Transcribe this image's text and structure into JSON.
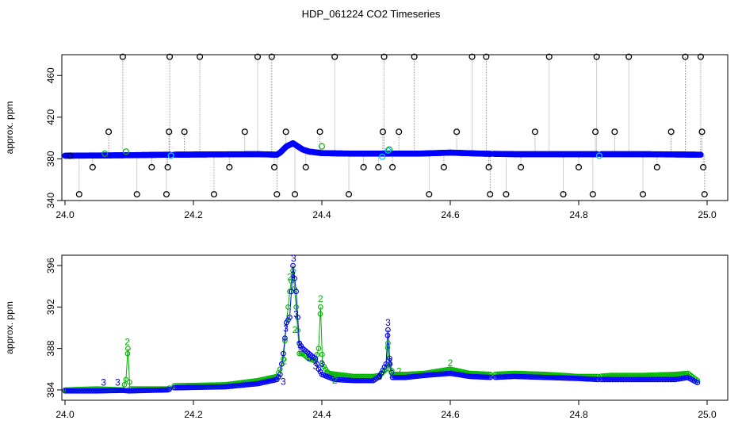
{
  "chart_data": {
    "type": "scatter",
    "title": "HDP_061224  CO2 Timeseries",
    "colors": {
      "black": "#000000",
      "blue": "#0000ff",
      "cyan": "#00c8ff",
      "green": "#00b400",
      "navy": "#0000cc",
      "gray": "#888888"
    },
    "panels": [
      {
        "ylabel": "approx. ppm",
        "xlim": [
          24.0,
          25.0
        ],
        "ylim": [
          340,
          480
        ],
        "xticks": [
          "24.0",
          "24.2",
          "24.4",
          "24.6",
          "24.8",
          "25.0"
        ],
        "yticks": [
          "340",
          "380",
          "420",
          "460"
        ],
        "baseline": [
          [
            24.0,
            383
          ],
          [
            24.1,
            383.5
          ],
          [
            24.16,
            384
          ],
          [
            24.3,
            384.5
          ],
          [
            24.33,
            384
          ],
          [
            24.335,
            386
          ],
          [
            24.34,
            389
          ],
          [
            24.345,
            392
          ],
          [
            24.355,
            395
          ],
          [
            24.36,
            393
          ],
          [
            24.37,
            389
          ],
          [
            24.38,
            387
          ],
          [
            24.4,
            385.5
          ],
          [
            24.45,
            385
          ],
          [
            24.5,
            385
          ],
          [
            24.55,
            385
          ],
          [
            24.6,
            386
          ],
          [
            24.65,
            385
          ],
          [
            24.7,
            384.5
          ],
          [
            24.8,
            384.5
          ],
          [
            24.9,
            384.5
          ],
          [
            24.99,
            384
          ]
        ],
        "gaps": [
          [
            24.165,
            24.17
          ],
          [
            24.664,
            24.668
          ],
          [
            24.83,
            24.835
          ]
        ],
        "outliers": [
          [
            24.008,
            383
          ],
          [
            24.022,
            346
          ],
          [
            24.043,
            372
          ],
          [
            24.068,
            406
          ],
          [
            24.09,
            478
          ],
          [
            24.112,
            346
          ],
          [
            24.135,
            372
          ],
          [
            24.158,
            346
          ],
          [
            24.16,
            372
          ],
          [
            24.162,
            406
          ],
          [
            24.163,
            478
          ],
          [
            24.186,
            406
          ],
          [
            24.21,
            478
          ],
          [
            24.232,
            346
          ],
          [
            24.256,
            372
          ],
          [
            24.28,
            406
          ],
          [
            24.3,
            478
          ],
          [
            24.322,
            478
          ],
          [
            24.326,
            372
          ],
          [
            24.33,
            346
          ],
          [
            24.344,
            406
          ],
          [
            24.358,
            346
          ],
          [
            24.375,
            372
          ],
          [
            24.397,
            406
          ],
          [
            24.42,
            478
          ],
          [
            24.442,
            346
          ],
          [
            24.465,
            372
          ],
          [
            24.488,
            372
          ],
          [
            24.495,
            406
          ],
          [
            24.497,
            478
          ],
          [
            24.51,
            372
          ],
          [
            24.52,
            406
          ],
          [
            24.544,
            478
          ],
          [
            24.567,
            346
          ],
          [
            24.59,
            372
          ],
          [
            24.61,
            406
          ],
          [
            24.634,
            478
          ],
          [
            24.656,
            478
          ],
          [
            24.66,
            372
          ],
          [
            24.662,
            346
          ],
          [
            24.687,
            346
          ],
          [
            24.71,
            372
          ],
          [
            24.732,
            406
          ],
          [
            24.754,
            478
          ],
          [
            24.776,
            346
          ],
          [
            24.8,
            372
          ],
          [
            24.822,
            346
          ],
          [
            24.826,
            406
          ],
          [
            24.828,
            478
          ],
          [
            24.856,
            406
          ],
          [
            24.878,
            478
          ],
          [
            24.9,
            346
          ],
          [
            24.922,
            372
          ],
          [
            24.944,
            406
          ],
          [
            24.966,
            478
          ],
          [
            24.99,
            478
          ],
          [
            24.992,
            406
          ],
          [
            24.994,
            372
          ],
          [
            24.996,
            346
          ]
        ],
        "cyan_points": [
          [
            24.165,
            383
          ],
          [
            24.494,
            382
          ],
          [
            24.503,
            388
          ],
          [
            24.832,
            383
          ]
        ],
        "green_points": [
          [
            24.062,
            385
          ],
          [
            24.095,
            387
          ],
          [
            24.4,
            392
          ],
          [
            24.505,
            389
          ]
        ]
      },
      {
        "ylabel": "approx. ppm",
        "xlim": [
          24.0,
          25.0
        ],
        "ylim": [
          383,
          397
        ],
        "xticks": [
          "24.0",
          "24.2",
          "24.4",
          "24.6",
          "24.8",
          "25.0"
        ],
        "yticks": [
          "384",
          "388",
          "392",
          "396"
        ],
        "series_blue": [
          [
            24.0,
            383.9
          ],
          [
            24.05,
            383.9
          ],
          [
            24.09,
            383.95
          ],
          [
            24.1,
            383.9
          ],
          [
            24.16,
            384.0
          ],
          [
            24.17,
            384.2
          ],
          [
            24.25,
            384.3
          ],
          [
            24.3,
            384.6
          ],
          [
            24.33,
            385.0
          ],
          [
            24.335,
            385.5
          ],
          [
            24.34,
            387.5
          ],
          [
            24.345,
            390.5
          ],
          [
            24.35,
            391.0
          ],
          [
            24.355,
            396.0
          ],
          [
            24.36,
            393.5
          ],
          [
            24.365,
            388.5
          ],
          [
            24.37,
            388.0
          ],
          [
            24.38,
            387.5
          ],
          [
            24.39,
            387.0
          ],
          [
            24.395,
            386.0
          ],
          [
            24.4,
            385.5
          ],
          [
            24.42,
            385.0
          ],
          [
            24.45,
            384.9
          ],
          [
            24.48,
            384.9
          ],
          [
            24.49,
            385.3
          ],
          [
            24.5,
            386.5
          ],
          [
            24.503,
            389.8
          ],
          [
            24.506,
            386.5
          ],
          [
            24.51,
            385.2
          ],
          [
            24.53,
            385.2
          ],
          [
            24.56,
            385.4
          ],
          [
            24.6,
            385.6
          ],
          [
            24.63,
            385.3
          ],
          [
            24.665,
            385.2
          ],
          [
            24.7,
            385.3
          ],
          [
            24.75,
            385.2
          ],
          [
            24.8,
            385.1
          ],
          [
            24.83,
            385.0
          ],
          [
            24.85,
            385.0
          ],
          [
            24.9,
            385.0
          ],
          [
            24.95,
            385.0
          ],
          [
            24.97,
            385.2
          ],
          [
            24.985,
            384.7
          ]
        ],
        "series_green": [
          [
            24.0,
            384.0
          ],
          [
            24.05,
            384.1
          ],
          [
            24.09,
            384.0
          ],
          [
            24.095,
            385.0
          ],
          [
            24.098,
            388.0
          ],
          [
            24.101,
            384.1
          ],
          [
            24.16,
            384.1
          ],
          [
            24.17,
            384.4
          ],
          [
            24.25,
            384.5
          ],
          [
            24.3,
            384.9
          ],
          [
            24.33,
            385.3
          ],
          [
            24.335,
            386.0
          ],
          [
            24.34,
            387.0
          ],
          [
            24.345,
            390.5
          ],
          [
            24.35,
            393.5
          ],
          [
            24.355,
            395.5
          ],
          [
            24.36,
            392.0
          ],
          [
            24.365,
            387.5
          ],
          [
            24.37,
            387.5
          ],
          [
            24.38,
            387.0
          ],
          [
            24.39,
            386.8
          ],
          [
            24.395,
            388.0
          ],
          [
            24.398,
            392.0
          ],
          [
            24.401,
            386.5
          ],
          [
            24.41,
            385.6
          ],
          [
            24.45,
            385.3
          ],
          [
            24.48,
            385.3
          ],
          [
            24.49,
            385.4
          ],
          [
            24.5,
            386.0
          ],
          [
            24.503,
            388.5
          ],
          [
            24.506,
            386.0
          ],
          [
            24.51,
            385.5
          ],
          [
            24.53,
            385.5
          ],
          [
            24.56,
            385.6
          ],
          [
            24.6,
            386.0
          ],
          [
            24.63,
            385.6
          ],
          [
            24.665,
            385.5
          ],
          [
            24.7,
            385.6
          ],
          [
            24.75,
            385.5
          ],
          [
            24.8,
            385.3
          ],
          [
            24.83,
            385.3
          ],
          [
            24.85,
            385.4
          ],
          [
            24.9,
            385.4
          ],
          [
            24.95,
            385.5
          ],
          [
            24.97,
            385.6
          ],
          [
            24.985,
            384.9
          ]
        ],
        "gaps": [
          [
            24.165,
            24.17
          ],
          [
            24.664,
            24.668
          ],
          [
            24.83,
            24.835
          ]
        ],
        "labels": [
          {
            "x": 24.06,
            "y": 384.4,
            "text": "3",
            "color": "navy"
          },
          {
            "x": 24.082,
            "y": 384.4,
            "text": "3",
            "color": "navy"
          },
          {
            "x": 24.097,
            "y": 388.3,
            "text": "2",
            "color": "green"
          },
          {
            "x": 24.34,
            "y": 384.5,
            "text": "3",
            "color": "navy"
          },
          {
            "x": 24.342,
            "y": 386.5,
            "text": "2",
            "color": "green"
          },
          {
            "x": 24.344,
            "y": 389.6,
            "text": "3",
            "color": "navy"
          },
          {
            "x": 24.348,
            "y": 390.6,
            "text": "2",
            "color": "green"
          },
          {
            "x": 24.35,
            "y": 394.6,
            "text": "2",
            "color": "green"
          },
          {
            "x": 24.355,
            "y": 394.8,
            "text": "3",
            "color": "navy"
          },
          {
            "x": 24.356,
            "y": 396.4,
            "text": "3",
            "color": "navy"
          },
          {
            "x": 24.36,
            "y": 391.0,
            "text": "3",
            "color": "navy"
          },
          {
            "x": 24.358,
            "y": 389.5,
            "text": "2",
            "color": "green"
          },
          {
            "x": 24.366,
            "y": 388.0,
            "text": "3",
            "color": "navy"
          },
          {
            "x": 24.38,
            "y": 386.8,
            "text": "5",
            "color": "navy"
          },
          {
            "x": 24.39,
            "y": 386.0,
            "text": "3",
            "color": "navy"
          },
          {
            "x": 24.398,
            "y": 392.5,
            "text": "2",
            "color": "green"
          },
          {
            "x": 24.4,
            "y": 386.2,
            "text": "3",
            "color": "navy"
          },
          {
            "x": 24.42,
            "y": 384.6,
            "text": "2",
            "color": "green"
          },
          {
            "x": 24.49,
            "y": 385.0,
            "text": "3",
            "color": "navy"
          },
          {
            "x": 24.503,
            "y": 390.2,
            "text": "3",
            "color": "navy"
          },
          {
            "x": 24.506,
            "y": 386.4,
            "text": "3",
            "color": "navy"
          },
          {
            "x": 24.51,
            "y": 385.4,
            "text": "2",
            "color": "green"
          },
          {
            "x": 24.52,
            "y": 385.5,
            "text": "2",
            "color": "green"
          },
          {
            "x": 24.6,
            "y": 386.3,
            "text": "2",
            "color": "green"
          }
        ]
      }
    ]
  }
}
